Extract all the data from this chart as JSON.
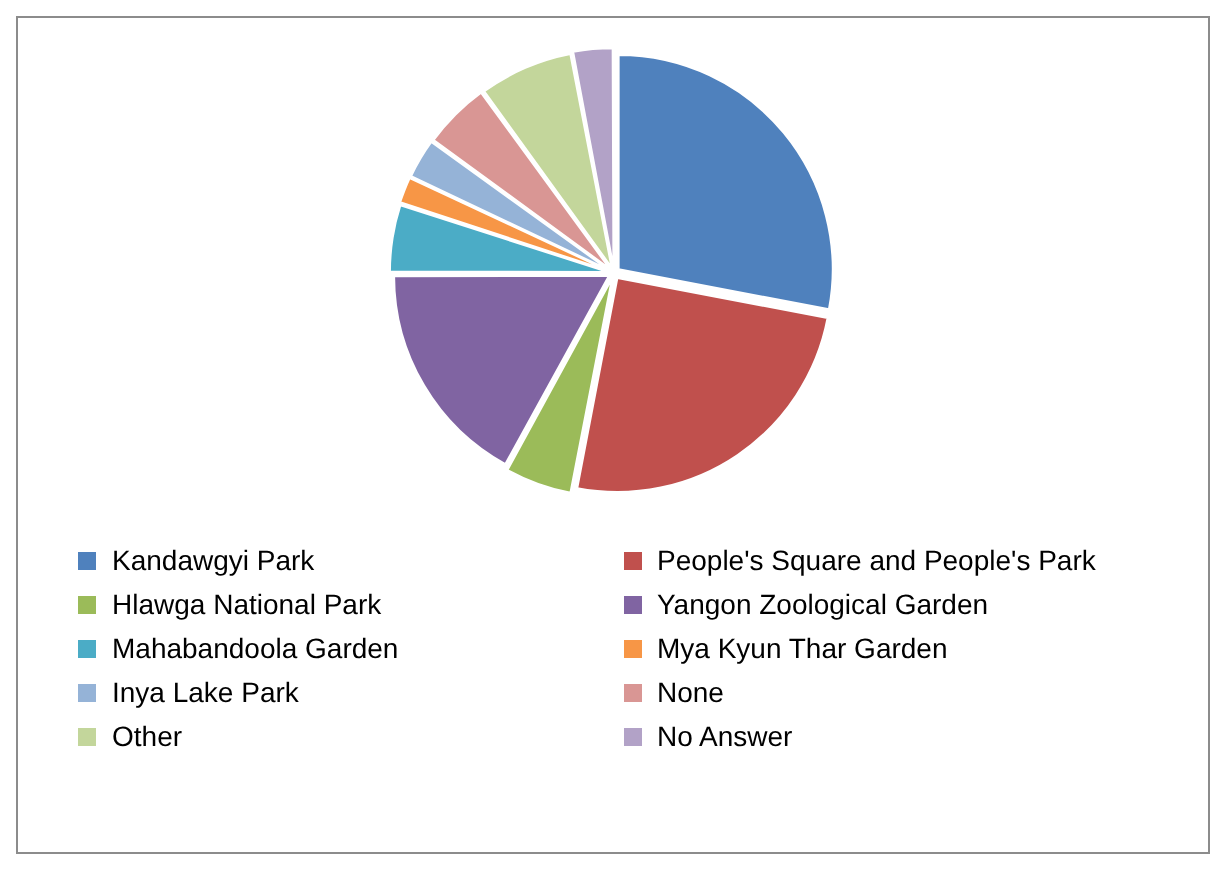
{
  "chart_data": {
    "type": "pie",
    "categories": [
      "Kandawgyi Park",
      "People's Square and People's Park",
      "Hlawga National Park",
      "Yangon Zoological Garden",
      "Mahabandoola Garden",
      "Mya Kyun Thar Garden",
      "Inya Lake Park",
      "None",
      "Other",
      "No Answer"
    ],
    "values": [
      28,
      25,
      5,
      17,
      5,
      2,
      3,
      5,
      7,
      3
    ],
    "colors": [
      "#4f81bd",
      "#c0504d",
      "#9bbb59",
      "#8064a2",
      "#4bacc6",
      "#f79646",
      "#95b3d7",
      "#d99694",
      "#c3d69b",
      "#b2a2c7"
    ],
    "legend": "bottom"
  }
}
